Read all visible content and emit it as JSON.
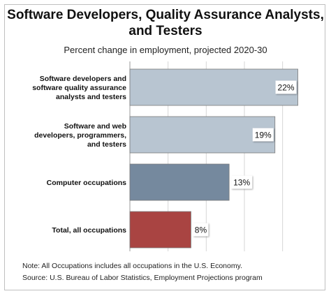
{
  "chart_data": {
    "type": "bar",
    "orientation": "horizontal",
    "title": "Software Developers, Quality Assurance Analysts, and Testers",
    "subtitle": "Percent change in employment, projected 2020-30",
    "categories": [
      "Software developers and software quality assurance analysts and testers",
      "Software and web developers, programmers, and testers",
      "Computer occupations",
      "Total, all occupations"
    ],
    "category_lines": [
      [
        "Software developers and",
        "software quality assurance",
        "analysts and testers"
      ],
      [
        "Software and web",
        "developers, programmers,",
        "and testers"
      ],
      [
        "Computer occupations"
      ],
      [
        "Total, all occupations"
      ]
    ],
    "values": [
      22,
      19,
      13,
      8
    ],
    "data_labels": [
      "22%",
      "19%",
      "13%",
      "8%"
    ],
    "bar_colors": [
      "#b8c5d1",
      "#b8c5d1",
      "#75899e",
      "#a94442"
    ],
    "xlim": [
      0,
      22.5
    ],
    "gridlines": [
      5,
      10,
      15,
      20
    ],
    "grid": true,
    "legend": "none"
  },
  "notes": {
    "line1": "Note: All Occupations includes all occupations in the U.S. Economy.",
    "line2": "Source: U.S. Bureau of Labor Statistics, Employment Projections program"
  }
}
